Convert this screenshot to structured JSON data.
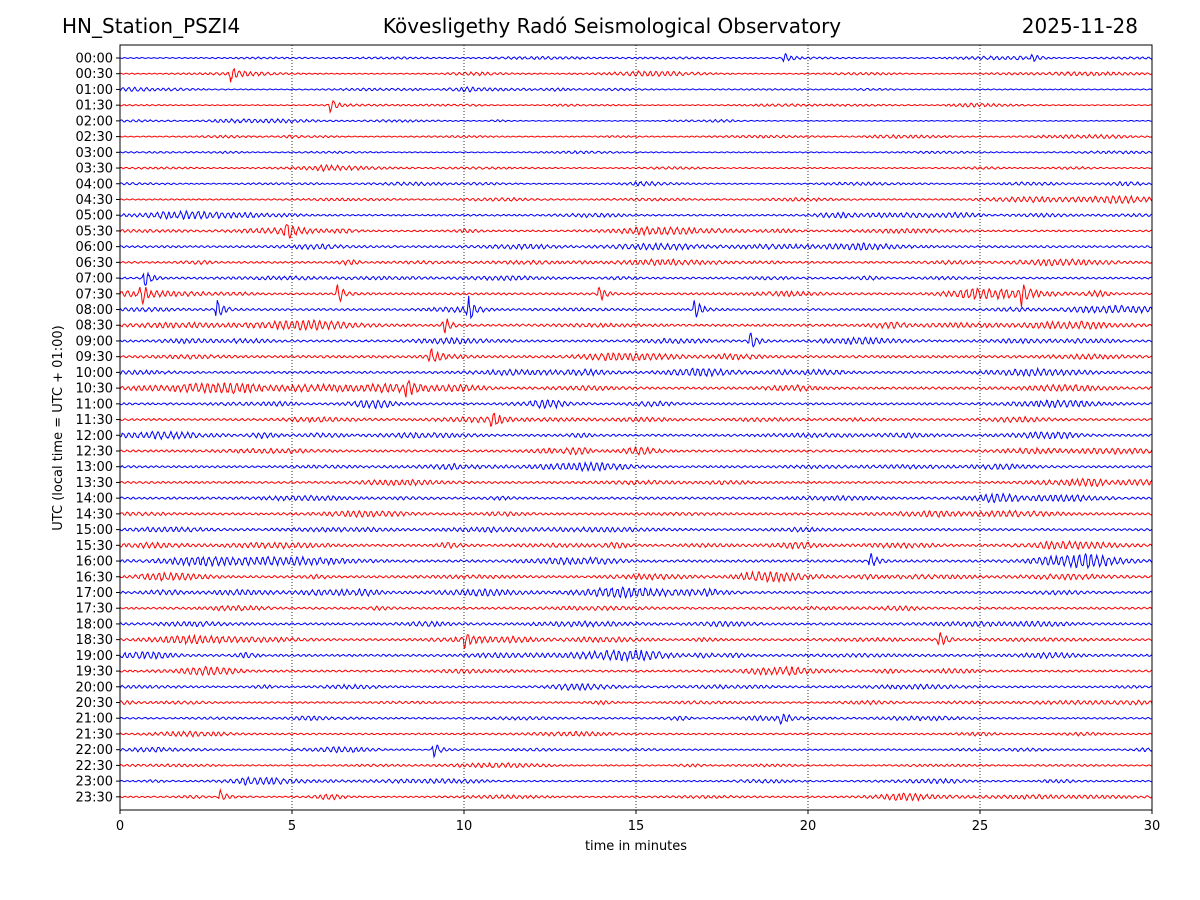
{
  "header": {
    "station": "HN_Station_PSZI4",
    "observatory": "Kövesligethy Radó Seismological Observatory",
    "date": "2025-11-28"
  },
  "chart_data": {
    "type": "line",
    "title": "Kövesligethy Radó Seismological Observatory",
    "xlabel": "time in minutes",
    "ylabel": "UTC (local time = UTC + 01:00)",
    "xlim": [
      0,
      30
    ],
    "x_ticks": [
      "0",
      "5",
      "10",
      "15",
      "20",
      "25",
      "30"
    ],
    "x_tick_values": [
      0,
      5,
      10,
      15,
      20,
      25,
      30
    ],
    "grid": "vertical dotted at x ticks",
    "row_labels": [
      "00:00",
      "00:30",
      "01:00",
      "01:30",
      "02:00",
      "02:30",
      "03:00",
      "03:30",
      "04:00",
      "04:30",
      "05:00",
      "05:30",
      "06:00",
      "06:30",
      "07:00",
      "07:30",
      "08:00",
      "08:30",
      "09:00",
      "09:30",
      "10:00",
      "10:30",
      "11:00",
      "11:30",
      "12:00",
      "12:30",
      "13:00",
      "13:30",
      "14:00",
      "14:30",
      "15:00",
      "15:30",
      "16:00",
      "16:30",
      "17:00",
      "17:30",
      "18:00",
      "18:30",
      "19:00",
      "19:30",
      "20:00",
      "20:30",
      "21:00",
      "21:30",
      "22:00",
      "22:30",
      "23:00",
      "23:30"
    ],
    "row_colors": [
      "#0000ff",
      "#ff0000"
    ],
    "row_activity": [
      0.35,
      0.35,
      0.35,
      0.3,
      0.3,
      0.35,
      0.35,
      0.4,
      0.4,
      0.45,
      0.55,
      0.6,
      0.7,
      0.65,
      0.65,
      0.7,
      0.7,
      0.75,
      0.7,
      0.8,
      0.75,
      0.8,
      0.7,
      0.7,
      0.75,
      0.75,
      0.7,
      0.7,
      0.75,
      0.75,
      0.75,
      0.8,
      0.8,
      0.75,
      0.75,
      0.7,
      0.75,
      0.75,
      0.75,
      0.7,
      0.6,
      0.55,
      0.55,
      0.55,
      0.5,
      0.45,
      0.5,
      0.5
    ],
    "events": [
      {
        "row": 0,
        "x": 19.3,
        "amp": 1.0
      },
      {
        "row": 0,
        "x": 26.5,
        "amp": 0.8
      },
      {
        "row": 1,
        "x": 3.2,
        "amp": 1.4
      },
      {
        "row": 3,
        "x": 6.1,
        "amp": 1.2
      },
      {
        "row": 11,
        "x": 4.8,
        "amp": 1.6
      },
      {
        "row": 14,
        "x": 0.7,
        "amp": 1.8
      },
      {
        "row": 15,
        "x": 0.6,
        "amp": 2.2
      },
      {
        "row": 15,
        "x": 6.3,
        "amp": 2.0
      },
      {
        "row": 15,
        "x": 13.9,
        "amp": 1.6
      },
      {
        "row": 15,
        "x": 26.2,
        "amp": 1.8
      },
      {
        "row": 16,
        "x": 2.8,
        "amp": 2.2
      },
      {
        "row": 16,
        "x": 10.1,
        "amp": 2.4
      },
      {
        "row": 16,
        "x": 16.7,
        "amp": 2.0
      },
      {
        "row": 17,
        "x": 9.4,
        "amp": 1.8
      },
      {
        "row": 18,
        "x": 18.3,
        "amp": 1.8
      },
      {
        "row": 19,
        "x": 9.0,
        "amp": 1.6
      },
      {
        "row": 21,
        "x": 8.3,
        "amp": 1.5
      },
      {
        "row": 23,
        "x": 10.8,
        "amp": 1.5
      },
      {
        "row": 32,
        "x": 21.8,
        "amp": 1.6
      },
      {
        "row": 37,
        "x": 10.0,
        "amp": 1.5
      },
      {
        "row": 37,
        "x": 23.8,
        "amp": 1.4
      },
      {
        "row": 42,
        "x": 19.2,
        "amp": 1.3
      },
      {
        "row": 44,
        "x": 9.1,
        "amp": 1.6
      },
      {
        "row": 47,
        "x": 2.9,
        "amp": 1.2
      }
    ]
  }
}
